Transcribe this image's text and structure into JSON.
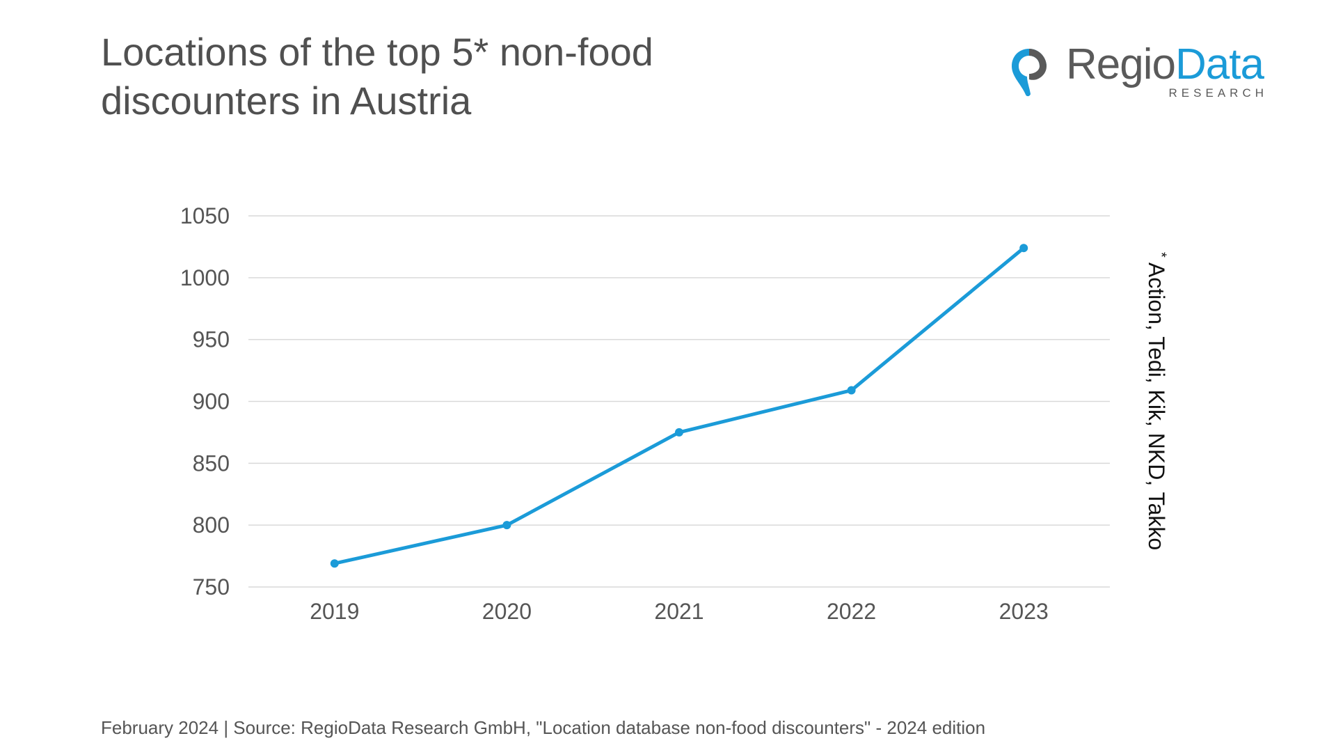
{
  "header": {
    "title_line1": "Locations of the top 5* non-food",
    "title_line2": "discounters in Austria"
  },
  "logo": {
    "word_regio": "Regio",
    "word_data": "Data",
    "subtitle": "RESEARCH",
    "icon": "map-pin-icon"
  },
  "footnote": {
    "star": "*",
    "text": "Action, Tedi, Kik, NKD, Takko"
  },
  "source": "February 2024 | Source: RegioData Research GmbH, \"Location database non-food discounters\" - 2024 edition",
  "colors": {
    "series": "#1b9bd8",
    "grid": "#d9d9d9",
    "text": "#555555"
  },
  "chart_data": {
    "type": "line",
    "title": "Locations of the top 5* non-food discounters in Austria",
    "xlabel": "",
    "ylabel": "",
    "categories": [
      "2019",
      "2020",
      "2021",
      "2022",
      "2023"
    ],
    "series": [
      {
        "values": [
          769,
          800,
          875,
          909,
          1024
        ]
      }
    ],
    "ylim": [
      750,
      1050
    ],
    "yticks": [
      750,
      800,
      850,
      900,
      950,
      1000,
      1050
    ],
    "grid": true,
    "legend": "none",
    "markers": true
  }
}
